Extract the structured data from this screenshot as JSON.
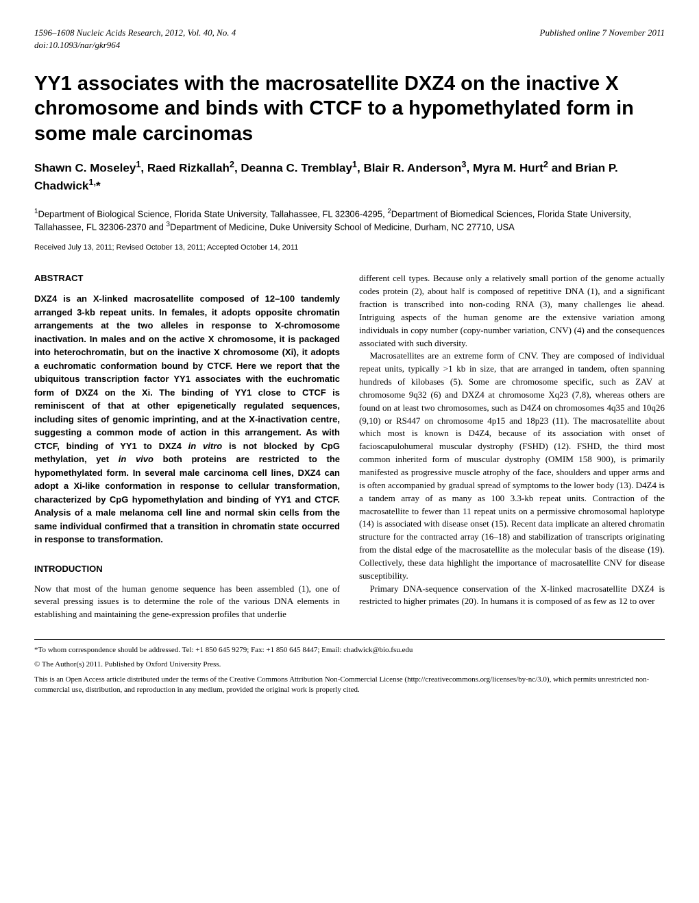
{
  "header": {
    "left": "1596–1608  Nucleic Acids Research, 2012, Vol. 40, No. 4",
    "right": "Published online 7 November 2011",
    "doi": "doi:10.1093/nar/gkr964"
  },
  "title": "YY1 associates with the macrosatellite DXZ4 on the inactive X chromosome and binds with CTCF to a hypomethylated form in some male carcinomas",
  "authors_html": "Shawn C. Moseley<sup>1</sup>, Raed Rizkallah<sup>2</sup>, Deanna C. Tremblay<sup>1</sup>, Blair R. Anderson<sup>3</sup>, Myra M. Hurt<sup>2</sup> and Brian P. Chadwick<sup>1,</sup>*",
  "affiliations_html": "<sup>1</sup>Department of Biological Science, Florida State University, Tallahassee, FL 32306-4295, <sup>2</sup>Department of Biomedical Sciences, Florida State University, Tallahassee, FL 32306-2370 and <sup>3</sup>Department of Medicine, Duke University School of Medicine, Durham, NC 27710, USA",
  "dates": "Received July 13, 2011; Revised October 13, 2011; Accepted October 14, 2011",
  "abstract_head": "ABSTRACT",
  "abstract_body_html": "DXZ4 is an X-linked macrosatellite composed of 12–100 tandemly arranged 3-kb repeat units. In females, it adopts opposite chromatin arrangements at the two alleles in response to X-chromosome inactivation. In males and on the active X chromosome, it is packaged into heterochromatin, but on the inactive X chromosome (Xi), it adopts a euchromatic conformation bound by CTCF. Here we report that the ubiquitous transcription factor YY1 associates with the euchromatic form of DXZ4 on the Xi. The binding of YY1 close to CTCF is reminiscent of that at other epigenetically regulated sequences, including sites of genomic imprinting, and at the X-inactivation centre, suggesting a common mode of action in this arrangement. As with CTCF, binding of YY1 to DXZ4 <i>in vitro</i> is not blocked by CpG methylation, yet <i>in vivo</i> both proteins are restricted to the hypomethylated form. In several male carcinoma cell lines, DXZ4 can adopt a Xi-like conformation in response to cellular transformation, characterized by CpG hypomethylation and binding of YY1 and CTCF. Analysis of a male melanoma cell line and normal skin cells from the same individual confirmed that a transition in chromatin state occurred in response to transformation.",
  "introduction_head": "INTRODUCTION",
  "intro_left": "Now that most of the human genome sequence has been assembled (1), one of several pressing issues is to determine the role of the various DNA elements in establishing and maintaining the gene-expression profiles that underlie",
  "right_p1": "different cell types. Because only a relatively small portion of the genome actually codes protein (2), about half is composed of repetitive DNA (1), and a significant fraction is transcribed into non-coding RNA (3), many challenges lie ahead. Intriguing aspects of the human genome are the extensive variation among individuals in copy number (copy-number variation, CNV) (4) and the consequences associated with such diversity.",
  "right_p2": "Macrosatellites are an extreme form of CNV. They are composed of individual repeat units, typically >1 kb in size, that are arranged in tandem, often spanning hundreds of kilobases (5). Some are chromosome specific, such as ZAV at chromosome 9q32 (6) and DXZ4 at chromosome Xq23 (7,8), whereas others are found on at least two chromosomes, such as D4Z4 on chromosomes 4q35 and 10q26 (9,10) or RS447 on chromosome 4p15 and 18p23 (11). The macrosatellite about which most is known is D4Z4, because of its association with onset of facioscapulohumeral muscular dystrophy (FSHD) (12). FSHD, the third most common inherited form of muscular dystrophy (OMIM 158 900), is primarily manifested as progressive muscle atrophy of the face, shoulders and upper arms and is often accompanied by gradual spread of symptoms to the lower body (13). D4Z4 is a tandem array of as many as 100 3.3-kb repeat units. Contraction of the macrosatellite to fewer than 11 repeat units on a permissive chromosomal haplotype (14) is associated with disease onset (15). Recent data implicate an altered chromatin structure for the contracted array (16–18) and stabilization of transcripts originating from the distal edge of the macrosatellite as the molecular basis of the disease (19). Collectively, these data highlight the importance of macrosatellite CNV for disease susceptibility.",
  "right_p3": "Primary DNA-sequence conservation of the X-linked macrosatellite DXZ4 is restricted to higher primates (20). In humans it is composed of as few as 12 to over",
  "footnotes": {
    "corr": "*To whom correspondence should be addressed. Tel: +1 850 645 9279; Fax: +1 850 645 8447; Email: chadwick@bio.fsu.edu",
    "copyright": "© The Author(s) 2011. Published by Oxford University Press.",
    "license": "This is an Open Access article distributed under the terms of the Creative Commons Attribution Non-Commercial License (http://creativecommons.org/licenses/by-nc/3.0), which permits unrestricted non-commercial use, distribution, and reproduction in any medium, provided the original work is properly cited."
  }
}
